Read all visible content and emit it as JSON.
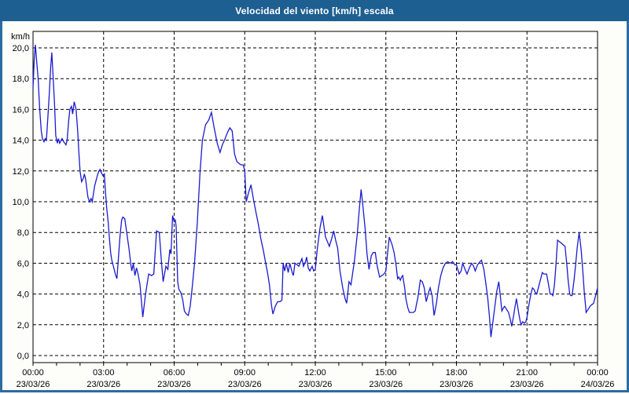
{
  "window": {
    "title": "Velocidad del viento [km/h] escala"
  },
  "colors": {
    "titlebar": "#1e5f91",
    "border": "#2b6ca4",
    "panel_bg": "#fdfdf9",
    "plot_bg": "#ffffff",
    "line": "#1b1bd0",
    "grid": "#000000",
    "text": "#000000"
  },
  "chart_data": {
    "type": "line",
    "title": "Velocidad del viento [km/h] escala",
    "ylabel": "km/h",
    "xlabel": "",
    "legend": "none",
    "grid": "dashed",
    "ylim": [
      0,
      20
    ],
    "xlim_hours": [
      0,
      24
    ],
    "y_ticks": [
      0,
      2,
      4,
      6,
      8,
      10,
      12,
      14,
      16,
      18,
      20
    ],
    "y_tick_labels": [
      "0,0",
      "2,0",
      "4,0",
      "6,0",
      "8,0",
      "10,0",
      "12,0",
      "14,0",
      "16,0",
      "18,0",
      "20,0"
    ],
    "x_minor_tick_every_hours": 1,
    "x_ticks": [
      {
        "hour": 0,
        "time": "00:00",
        "date": "23/03/26"
      },
      {
        "hour": 3,
        "time": "03:00",
        "date": "23/03/26"
      },
      {
        "hour": 6,
        "time": "06:00",
        "date": "23/03/26"
      },
      {
        "hour": 9,
        "time": "09:00",
        "date": "23/03/26"
      },
      {
        "hour": 12,
        "time": "12:00",
        "date": "23/03/26"
      },
      {
        "hour": 15,
        "time": "15:00",
        "date": "23/03/26"
      },
      {
        "hour": 18,
        "time": "18:00",
        "date": "23/03/26"
      },
      {
        "hour": 21,
        "time": "21:00",
        "date": "23/03/26"
      },
      {
        "hour": 24,
        "time": "00:00",
        "date": "24/03/26"
      }
    ],
    "series": [
      {
        "name": "Velocidad del viento [km/h]",
        "points_format": "[minutes_since_00:00, km/h]",
        "points": [
          [
            0,
            17.4
          ],
          [
            3,
            19.2
          ],
          [
            6,
            20.2
          ],
          [
            10,
            18.9
          ],
          [
            13,
            18.0
          ],
          [
            17,
            16.0
          ],
          [
            21,
            14.6
          ],
          [
            24,
            14.1
          ],
          [
            28,
            13.9
          ],
          [
            31,
            14.1
          ],
          [
            34,
            14.0
          ],
          [
            38,
            15.5
          ],
          [
            42,
            17.2
          ],
          [
            45,
            18.7
          ],
          [
            48,
            19.7
          ],
          [
            52,
            17.8
          ],
          [
            55,
            16.3
          ],
          [
            58,
            14.3
          ],
          [
            62,
            13.8
          ],
          [
            65,
            14.1
          ],
          [
            68,
            13.8
          ],
          [
            74,
            14.1
          ],
          [
            78,
            13.9
          ],
          [
            81,
            13.8
          ],
          [
            84,
            13.7
          ],
          [
            87,
            14.0
          ],
          [
            91,
            15.3
          ],
          [
            94,
            16.0
          ],
          [
            98,
            16.2
          ],
          [
            101,
            15.7
          ],
          [
            105,
            16.5
          ],
          [
            110,
            16.0
          ],
          [
            114,
            14.6
          ],
          [
            117,
            13.2
          ],
          [
            120,
            12.0
          ],
          [
            124,
            11.3
          ],
          [
            128,
            11.5
          ],
          [
            131,
            11.8
          ],
          [
            134,
            11.5
          ],
          [
            140,
            10.3
          ],
          [
            144,
            10.0
          ],
          [
            148,
            10.2
          ],
          [
            151,
            10.0
          ],
          [
            157,
            11.0
          ],
          [
            164,
            11.7
          ],
          [
            168,
            12.0
          ],
          [
            171,
            12.1
          ],
          [
            174,
            11.9
          ],
          [
            178,
            11.7
          ],
          [
            182,
            11.8
          ],
          [
            185,
            10.6
          ],
          [
            188,
            9.6
          ],
          [
            192,
            8.6
          ],
          [
            195,
            7.6
          ],
          [
            198,
            6.7
          ],
          [
            201,
            6.2
          ],
          [
            205,
            5.8
          ],
          [
            208,
            5.5
          ],
          [
            211,
            5.2
          ],
          [
            214,
            5.0
          ],
          [
            218,
            6.4
          ],
          [
            222,
            7.8
          ],
          [
            226,
            8.8
          ],
          [
            229,
            9.0
          ],
          [
            234,
            8.9
          ],
          [
            240,
            7.8
          ],
          [
            245,
            6.9
          ],
          [
            249,
            6.0
          ],
          [
            252,
            5.5
          ],
          [
            256,
            6.0
          ],
          [
            260,
            5.2
          ],
          [
            264,
            5.7
          ],
          [
            268,
            5.3
          ],
          [
            273,
            4.6
          ],
          [
            280,
            2.5
          ],
          [
            287,
            4.0
          ],
          [
            295,
            5.3
          ],
          [
            302,
            5.2
          ],
          [
            308,
            5.3
          ],
          [
            315,
            8.1
          ],
          [
            322,
            8.0
          ],
          [
            328,
            6.0
          ],
          [
            332,
            4.8
          ],
          [
            339,
            5.8
          ],
          [
            344,
            5.6
          ],
          [
            349,
            6.9
          ],
          [
            352,
            6.6
          ],
          [
            356,
            9.1
          ],
          [
            360,
            8.7
          ],
          [
            363,
            8.8
          ],
          [
            365,
            8.4
          ],
          [
            369,
            4.8
          ],
          [
            372,
            4.3
          ],
          [
            377,
            4.1
          ],
          [
            382,
            3.6
          ],
          [
            386,
            2.9
          ],
          [
            391,
            2.7
          ],
          [
            396,
            2.6
          ],
          [
            401,
            3.2
          ],
          [
            406,
            4.4
          ],
          [
            412,
            6.0
          ],
          [
            419,
            8.6
          ],
          [
            426,
            11.9
          ],
          [
            432,
            14.0
          ],
          [
            440,
            15.0
          ],
          [
            448,
            15.3
          ],
          [
            455,
            15.8
          ],
          [
            462,
            14.8
          ],
          [
            470,
            13.8
          ],
          [
            477,
            13.2
          ],
          [
            483,
            13.7
          ],
          [
            490,
            14.1
          ],
          [
            496,
            14.5
          ],
          [
            502,
            14.8
          ],
          [
            508,
            14.6
          ],
          [
            514,
            13.1
          ],
          [
            520,
            12.6
          ],
          [
            525,
            12.5
          ],
          [
            530,
            12.4
          ],
          [
            536,
            12.4
          ],
          [
            540,
            12.0
          ],
          [
            544,
            10.0
          ],
          [
            550,
            10.6
          ],
          [
            556,
            11.1
          ],
          [
            562,
            10.2
          ],
          [
            568,
            9.4
          ],
          [
            575,
            8.5
          ],
          [
            581,
            7.6
          ],
          [
            587,
            6.9
          ],
          [
            592,
            6.2
          ],
          [
            598,
            5.4
          ],
          [
            603,
            4.6
          ],
          [
            608,
            3.3
          ],
          [
            612,
            2.7
          ],
          [
            618,
            3.2
          ],
          [
            624,
            3.5
          ],
          [
            630,
            3.5
          ],
          [
            635,
            3.6
          ],
          [
            638,
            6.0
          ],
          [
            642,
            5.5
          ],
          [
            646,
            6.0
          ],
          [
            651,
            5.4
          ],
          [
            655,
            6.0
          ],
          [
            661,
            5.4
          ],
          [
            664,
            5.2
          ],
          [
            668,
            6.0
          ],
          [
            674,
            5.9
          ],
          [
            678,
            5.8
          ],
          [
            686,
            6.3
          ],
          [
            690,
            5.8
          ],
          [
            695,
            6.1
          ],
          [
            698,
            6.4
          ],
          [
            702,
            5.7
          ],
          [
            706,
            5.5
          ],
          [
            712,
            5.8
          ],
          [
            716,
            5.5
          ],
          [
            720,
            5.6
          ],
          [
            725,
            6.9
          ],
          [
            732,
            8.3
          ],
          [
            738,
            9.1
          ],
          [
            746,
            7.7
          ],
          [
            756,
            7.1
          ],
          [
            762,
            7.6
          ],
          [
            767,
            8.1
          ],
          [
            772,
            7.5
          ],
          [
            777,
            7.0
          ],
          [
            783,
            5.5
          ],
          [
            790,
            4.4
          ],
          [
            796,
            3.7
          ],
          [
            800,
            3.4
          ],
          [
            806,
            4.8
          ],
          [
            811,
            4.6
          ],
          [
            820,
            6.2
          ],
          [
            827,
            7.9
          ],
          [
            832,
            9.4
          ],
          [
            837,
            10.8
          ],
          [
            842,
            9.6
          ],
          [
            847,
            8.3
          ],
          [
            852,
            6.6
          ],
          [
            857,
            5.6
          ],
          [
            863,
            6.5
          ],
          [
            868,
            6.7
          ],
          [
            873,
            6.7
          ],
          [
            878,
            5.8
          ],
          [
            884,
            5.1
          ],
          [
            890,
            5.2
          ],
          [
            895,
            5.3
          ],
          [
            900,
            5.5
          ],
          [
            905,
            6.8
          ],
          [
            909,
            7.7
          ],
          [
            916,
            7.2
          ],
          [
            921,
            6.7
          ],
          [
            926,
            5.9
          ],
          [
            930,
            5.0
          ],
          [
            933,
            5.1
          ],
          [
            937,
            4.9
          ],
          [
            940,
            5.1
          ],
          [
            943,
            5.2
          ],
          [
            948,
            4.4
          ],
          [
            951,
            3.7
          ],
          [
            956,
            3.1
          ],
          [
            960,
            2.8
          ],
          [
            965,
            2.8
          ],
          [
            970,
            2.8
          ],
          [
            975,
            2.9
          ],
          [
            978,
            3.3
          ],
          [
            982,
            3.8
          ],
          [
            988,
            4.9
          ],
          [
            993,
            4.8
          ],
          [
            998,
            4.4
          ],
          [
            1003,
            3.5
          ],
          [
            1009,
            4.1
          ],
          [
            1013,
            4.4
          ],
          [
            1018,
            3.9
          ],
          [
            1023,
            2.6
          ],
          [
            1029,
            3.4
          ],
          [
            1034,
            4.4
          ],
          [
            1040,
            5.2
          ],
          [
            1046,
            5.7
          ],
          [
            1052,
            6.0
          ],
          [
            1058,
            6.1
          ],
          [
            1064,
            6.0
          ],
          [
            1070,
            6.1
          ],
          [
            1076,
            5.9
          ],
          [
            1080,
            5.9
          ],
          [
            1087,
            5.3
          ],
          [
            1092,
            5.5
          ],
          [
            1096,
            6.0
          ],
          [
            1102,
            5.6
          ],
          [
            1107,
            5.3
          ],
          [
            1113,
            5.7
          ],
          [
            1119,
            6.0
          ],
          [
            1124,
            5.8
          ],
          [
            1128,
            5.5
          ],
          [
            1134,
            5.9
          ],
          [
            1140,
            6.1
          ],
          [
            1144,
            6.2
          ],
          [
            1150,
            5.6
          ],
          [
            1155,
            4.7
          ],
          [
            1160,
            3.7
          ],
          [
            1164,
            2.6
          ],
          [
            1168,
            1.2
          ],
          [
            1173,
            2.2
          ],
          [
            1178,
            3.2
          ],
          [
            1183,
            4.2
          ],
          [
            1188,
            4.8
          ],
          [
            1192,
            3.9
          ],
          [
            1196,
            2.9
          ],
          [
            1200,
            3.1
          ],
          [
            1203,
            3.2
          ],
          [
            1208,
            3.0
          ],
          [
            1213,
            2.8
          ],
          [
            1217,
            2.4
          ],
          [
            1221,
            1.9
          ],
          [
            1226,
            2.6
          ],
          [
            1229,
            3.1
          ],
          [
            1233,
            3.7
          ],
          [
            1238,
            2.9
          ],
          [
            1242,
            2.3
          ],
          [
            1245,
            2.0
          ],
          [
            1249,
            2.2
          ],
          [
            1253,
            2.1
          ],
          [
            1257,
            2.2
          ],
          [
            1260,
            2.5
          ],
          [
            1265,
            3.3
          ],
          [
            1270,
            4.0
          ],
          [
            1274,
            4.4
          ],
          [
            1278,
            4.3
          ],
          [
            1281,
            4.1
          ],
          [
            1285,
            4.0
          ],
          [
            1290,
            4.5
          ],
          [
            1294,
            4.9
          ],
          [
            1299,
            5.4
          ],
          [
            1303,
            5.3
          ],
          [
            1307,
            5.3
          ],
          [
            1310,
            5.3
          ],
          [
            1315,
            4.6
          ],
          [
            1319,
            4.0
          ],
          [
            1323,
            4.0
          ],
          [
            1326,
            3.9
          ],
          [
            1330,
            4.6
          ],
          [
            1334,
            5.9
          ],
          [
            1338,
            7.5
          ],
          [
            1343,
            7.4
          ],
          [
            1348,
            7.3
          ],
          [
            1352,
            7.2
          ],
          [
            1357,
            7.1
          ],
          [
            1361,
            6.1
          ],
          [
            1365,
            4.9
          ],
          [
            1369,
            4.0
          ],
          [
            1372,
            3.9
          ],
          [
            1375,
            3.9
          ],
          [
            1380,
            4.9
          ],
          [
            1384,
            5.9
          ],
          [
            1388,
            7.0
          ],
          [
            1393,
            8.0
          ],
          [
            1398,
            6.9
          ],
          [
            1402,
            5.6
          ],
          [
            1406,
            4.2
          ],
          [
            1411,
            2.8
          ],
          [
            1416,
            3.0
          ],
          [
            1421,
            3.2
          ],
          [
            1425,
            3.3
          ],
          [
            1430,
            3.4
          ],
          [
            1435,
            3.9
          ],
          [
            1440,
            4.4
          ]
        ]
      }
    ]
  }
}
